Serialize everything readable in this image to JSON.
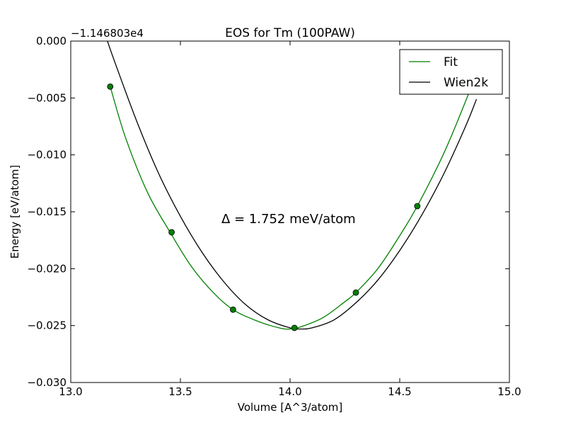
{
  "chart_data": {
    "type": "line",
    "title": "EOS for Tm (100PAW)",
    "xlabel": "Volume [A^3/atom]",
    "ylabel": "Energy [eV/atom]",
    "y_offset_label": "−1.146803e4",
    "annotation": "Δ = 1.752 meV/atom",
    "xlim": [
      13.0,
      15.0
    ],
    "ylim": [
      -0.03,
      0.0
    ],
    "x_ticks": [
      13.0,
      13.5,
      14.0,
      14.5,
      15.0
    ],
    "x_tick_labels": [
      "13.0",
      "13.5",
      "14.0",
      "14.5",
      "15.0"
    ],
    "y_ticks": [
      0.0,
      -0.005,
      -0.01,
      -0.015,
      -0.02,
      -0.025,
      -0.03
    ],
    "y_tick_labels": [
      "0.000",
      "−0.005",
      "−0.010",
      "−0.015",
      "−0.020",
      "−0.025",
      "−0.030"
    ],
    "grid": false,
    "legend_position": "top-right",
    "series": [
      {
        "name": "Fit",
        "color": "#008000",
        "x": [
          13.18,
          13.25,
          13.35,
          13.45,
          13.55,
          13.65,
          13.74,
          13.85,
          13.95,
          14.0,
          14.05,
          14.15,
          14.25,
          14.3,
          14.4,
          14.5,
          14.58,
          14.7,
          14.8,
          14.86
        ],
        "y": [
          -0.004,
          -0.0085,
          -0.0133,
          -0.0167,
          -0.0198,
          -0.0221,
          -0.0236,
          -0.0246,
          -0.0252,
          -0.0253,
          -0.0251,
          -0.0243,
          -0.0229,
          -0.0221,
          -0.02,
          -0.0171,
          -0.0145,
          -0.0099,
          -0.0053,
          -0.0022
        ]
      },
      {
        "name": "Wien2k",
        "color": "#000000",
        "x": [
          13.16,
          13.2,
          13.3,
          13.4,
          13.5,
          13.6,
          13.7,
          13.8,
          13.9,
          14.0,
          14.05,
          14.1,
          14.2,
          14.3,
          14.4,
          14.5,
          14.6,
          14.7,
          14.8,
          14.85
        ],
        "y": [
          0.0004,
          -0.0018,
          -0.007,
          -0.0116,
          -0.0154,
          -0.0186,
          -0.0212,
          -0.0232,
          -0.0245,
          -0.0252,
          -0.0253,
          -0.0252,
          -0.0245,
          -0.023,
          -0.021,
          -0.0184,
          -0.0153,
          -0.0117,
          -0.0075,
          -0.0051
        ]
      }
    ],
    "points": {
      "color": "#008000",
      "x": [
        13.18,
        13.46,
        13.74,
        14.02,
        14.3,
        14.58
      ],
      "y": [
        -0.004,
        -0.0168,
        -0.0236,
        -0.0252,
        -0.0221,
        -0.0145
      ]
    }
  }
}
